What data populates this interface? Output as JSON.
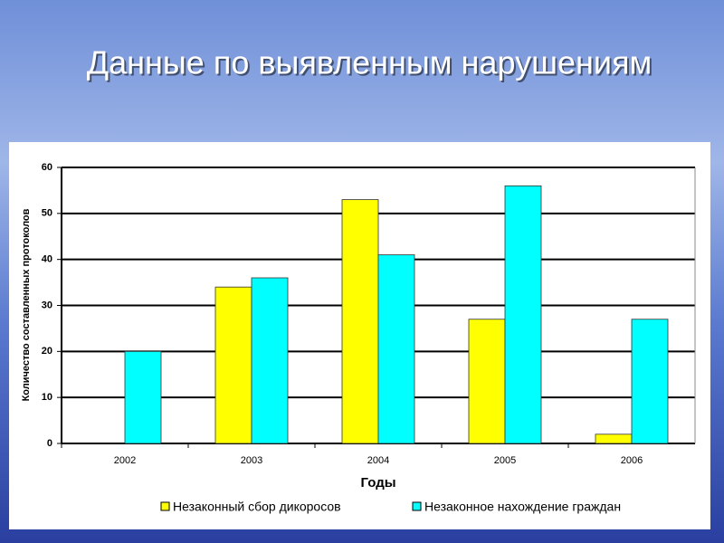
{
  "chart_data": {
    "type": "bar",
    "title": "Данные по выявленным нарушениям",
    "x_label": "Годы",
    "y_label": "Количество составленных протоколов",
    "categories": [
      "2002",
      "2003",
      "2004",
      "2005",
      "2006"
    ],
    "series": [
      {
        "name": "Незаконный сбор дикоросов",
        "color": "#ffff00",
        "values": [
          0,
          34,
          53,
          27,
          2
        ]
      },
      {
        "name": "Незаконное нахождение граждан",
        "color": "#00ffff",
        "values": [
          20,
          36,
          41,
          56,
          27
        ]
      }
    ],
    "ylim": [
      0,
      60
    ],
    "yticks": [
      0,
      10,
      20,
      30,
      40,
      50,
      60
    ],
    "grid": true,
    "legend": "bottom"
  }
}
